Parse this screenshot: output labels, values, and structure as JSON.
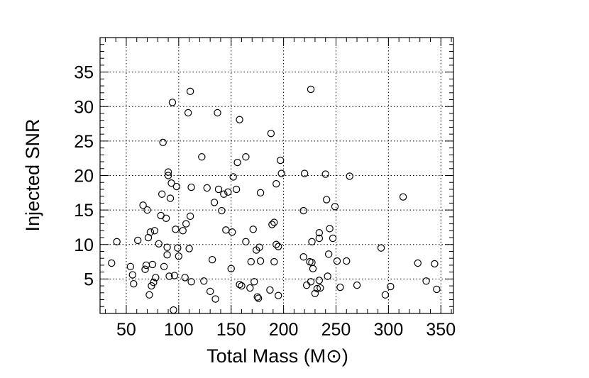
{
  "chart_data": {
    "type": "scatter",
    "xlabel": "Total Mass (M",
    "xlabel_symbol": "⊙",
    "xlabel_suffix": ")",
    "ylabel": "Injected SNR",
    "xlim": [
      25,
      362
    ],
    "ylim": [
      0,
      40
    ],
    "x_ticks": [
      50,
      100,
      150,
      200,
      250,
      300,
      350
    ],
    "x_tick_labels": [
      "50",
      "100",
      "150",
      "200",
      "250",
      "300",
      "350"
    ],
    "y_ticks": [
      5,
      10,
      15,
      20,
      25,
      30,
      35
    ],
    "y_tick_labels": [
      "5",
      "10",
      "15",
      "20",
      "25",
      "30",
      "35"
    ],
    "grid": true,
    "marker": "open-circle",
    "series": [
      {
        "points": [
          [
            36,
            7.3
          ],
          [
            41,
            10.4
          ],
          [
            54,
            6.8
          ],
          [
            56,
            5.6
          ],
          [
            57,
            4.3
          ],
          [
            61,
            10.6
          ],
          [
            66,
            15.7
          ],
          [
            68,
            6.4
          ],
          [
            69,
            7.0
          ],
          [
            70,
            15.0
          ],
          [
            71,
            11.0
          ],
          [
            72,
            2.7
          ],
          [
            73,
            11.8
          ],
          [
            74,
            4.0
          ],
          [
            75,
            7.1
          ],
          [
            76,
            4.5
          ],
          [
            77,
            12.0
          ],
          [
            78,
            5.2
          ],
          [
            81,
            10.1
          ],
          [
            83,
            14.2
          ],
          [
            84,
            17.3
          ],
          [
            85,
            24.8
          ],
          [
            86,
            6.8
          ],
          [
            88,
            13.8
          ],
          [
            89,
            8.5
          ],
          [
            89,
            9.6
          ],
          [
            90,
            20.5
          ],
          [
            90,
            20.0
          ],
          [
            91,
            5.4
          ],
          [
            92,
            16.7
          ],
          [
            93,
            18.9
          ],
          [
            94,
            30.6
          ],
          [
            95,
            0.5
          ],
          [
            96,
            5.5
          ],
          [
            97,
            12.2
          ],
          [
            98,
            18.4
          ],
          [
            99,
            9.5
          ],
          [
            100,
            8.3
          ],
          [
            104,
            12.0
          ],
          [
            106,
            5.2
          ],
          [
            107,
            13.0
          ],
          [
            109,
            29.1
          ],
          [
            110,
            9.4
          ],
          [
            111,
            32.2
          ],
          [
            111,
            14.1
          ],
          [
            112,
            18.3
          ],
          [
            112,
            4.6
          ],
          [
            122,
            22.7
          ],
          [
            124,
            4.7
          ],
          [
            127,
            18.2
          ],
          [
            130,
            3.2
          ],
          [
            132,
            7.8
          ],
          [
            134,
            16.1
          ],
          [
            135,
            2.1
          ],
          [
            137,
            29.1
          ],
          [
            138,
            18.0
          ],
          [
            141,
            14.9
          ],
          [
            143,
            17.3
          ],
          [
            145,
            12.1
          ],
          [
            147,
            17.6
          ],
          [
            150,
            6.5
          ],
          [
            151,
            11.8
          ],
          [
            152,
            19.8
          ],
          [
            155,
            18.0
          ],
          [
            156,
            21.9
          ],
          [
            158,
            28.1
          ],
          [
            158,
            4.2
          ],
          [
            160,
            4.0
          ],
          [
            164,
            22.7
          ],
          [
            164,
            10.4
          ],
          [
            168,
            3.7
          ],
          [
            169,
            7.5
          ],
          [
            171,
            12.2
          ],
          [
            172,
            4.6
          ],
          [
            174,
            9.2
          ],
          [
            175,
            2.4
          ],
          [
            176,
            2.2
          ],
          [
            177,
            9.6
          ],
          [
            178,
            7.6
          ],
          [
            178,
            17.5
          ],
          [
            187,
            3.4
          ],
          [
            188,
            26.1
          ],
          [
            189,
            12.9
          ],
          [
            191,
            13.2
          ],
          [
            191,
            7.5
          ],
          [
            193,
            18.8
          ],
          [
            193,
            10.0
          ],
          [
            195,
            2.6
          ],
          [
            195,
            9.7
          ],
          [
            197,
            22.2
          ],
          [
            198,
            20.3
          ],
          [
            219,
            14.9
          ],
          [
            219,
            8.2
          ],
          [
            220,
            20.3
          ],
          [
            222,
            4.1
          ],
          [
            225,
            7.5
          ],
          [
            226,
            32.5
          ],
          [
            226,
            4.6
          ],
          [
            227,
            10.4
          ],
          [
            227,
            7.4
          ],
          [
            228,
            6.5
          ],
          [
            230,
            2.9
          ],
          [
            232,
            3.6
          ],
          [
            234,
            4.8
          ],
          [
            234,
            11.7
          ],
          [
            234,
            10.9
          ],
          [
            235,
            3.7
          ],
          [
            240,
            20.2
          ],
          [
            241,
            16.5
          ],
          [
            242,
            5.4
          ],
          [
            243,
            8.6
          ],
          [
            244,
            12.3
          ],
          [
            247,
            10.9
          ],
          [
            249,
            15.5
          ],
          [
            251,
            7.6
          ],
          [
            254,
            3.8
          ],
          [
            260,
            7.6
          ],
          [
            263,
            19.9
          ],
          [
            270,
            4.1
          ],
          [
            293,
            9.5
          ],
          [
            297,
            2.7
          ],
          [
            302,
            3.9
          ],
          [
            314,
            16.9
          ],
          [
            328,
            7.3
          ],
          [
            336,
            4.7
          ],
          [
            344,
            7.2
          ],
          [
            346,
            3.5
          ]
        ]
      }
    ]
  }
}
